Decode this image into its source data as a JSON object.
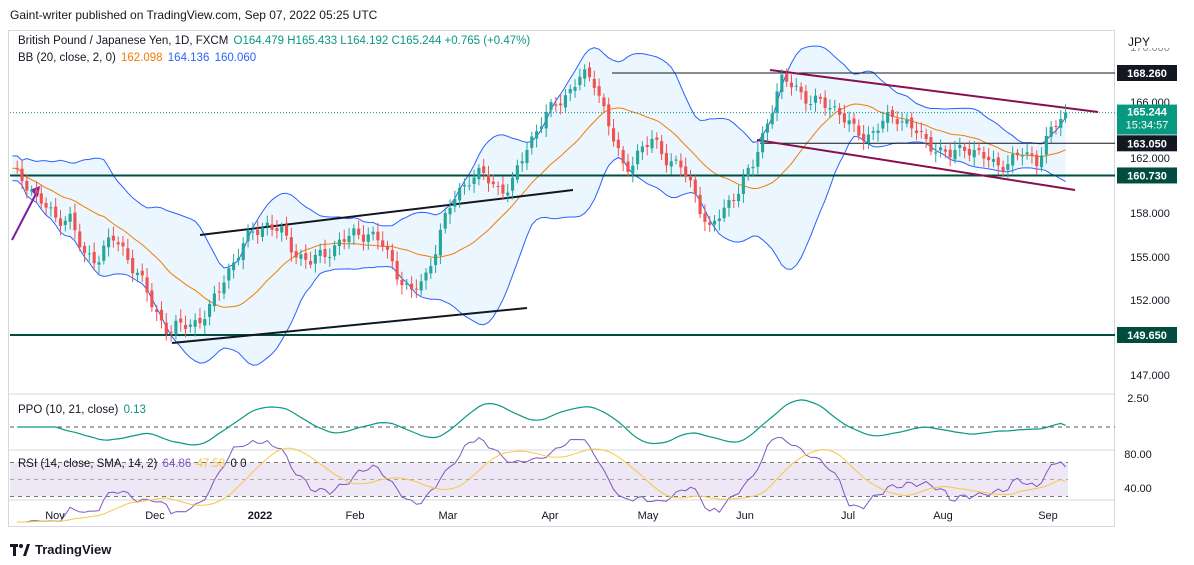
{
  "header": {
    "publisher": "Gaint-writer published on TradingView.com, Sep 07, 2022 05:25 UTC"
  },
  "legend": {
    "symbol": "British Pound / Japanese Yen, 1D, FXCM",
    "ohlc": "O164.479  H165.433  L164.192  C165.244  +0.765 (+0.47%)",
    "bb_label": "BB (20, close, 2, 0)",
    "bb_basis": "162.098",
    "bb_upper": "164.136",
    "bb_lower": "160.060",
    "ppo_label": "PPO (10, 21, close)",
    "ppo_value": "0.13",
    "rsi_label": "RSI (14, close, SMA, 14, 2)",
    "rsi_value": "64.86",
    "rsi_sma": "47.58",
    "rsi_extra": "0  0"
  },
  "currency": "JPY",
  "footer": {
    "brand": "TradingView"
  },
  "colors": {
    "up": "#26a69a",
    "down": "#ef5350",
    "bb_fill": "#e3f2fd",
    "bb_band": "#2962ff",
    "basis": "#f57c00",
    "support": "#004d40",
    "channel": "#880e4f",
    "ppo": "#089981",
    "rsi": "#7e57c2",
    "rsi_sma": "#f7c744"
  },
  "chart_data": [
    {
      "type": "candlestick",
      "title": "British Pound / Japanese Yen, 1D, FXCM",
      "ylim": [
        146,
        170
      ],
      "ytick_labels": [
        "147.000",
        "149.650",
        "152.000",
        "155.000",
        "158.000",
        "160.730",
        "162.000",
        "163.050",
        "165.244",
        "166.000",
        "168.260"
      ],
      "x_tick_labels": [
        "Nov",
        "Dec",
        "2022",
        "Feb",
        "Mar",
        "Apr",
        "May",
        "Jun",
        "Jul",
        "Aug",
        "Sep"
      ],
      "close_path": [
        161,
        160.2,
        158.8,
        157.6,
        157.8,
        155.0,
        155.0,
        156.3,
        155.2,
        153.5,
        151.2,
        150.0,
        150.2,
        150.6,
        151.5,
        153.8,
        155.5,
        156.8,
        157.3,
        156.5,
        155.2,
        154.6,
        155.3,
        156.0,
        156.5,
        156.7,
        155.8,
        154.0,
        152.4,
        153.5,
        156.5,
        159.0,
        160.5,
        160.8,
        159.9,
        159.7,
        162.5,
        164.4,
        165.6,
        166.7,
        168.1,
        167.5,
        164.0,
        161.0,
        162.5,
        163.2,
        162.0,
        161.3,
        159.3,
        156.8,
        158.2,
        159.8,
        161.3,
        164.5,
        167.6,
        167.3,
        166.0,
        165.9,
        165.5,
        164.0,
        163.5,
        164.4,
        165.0,
        164.5,
        163.2,
        162.7,
        162.1,
        162.9,
        162.2,
        161.5,
        161.7,
        162.3,
        161.9,
        163.9,
        165.244
      ],
      "price_labels": [
        {
          "label": "168.260",
          "price": 168.26,
          "style": "level"
        },
        {
          "label": "165.244",
          "sub": "15:34:57",
          "price": 165.244,
          "style": "current"
        },
        {
          "label": "163.050",
          "price": 163.05,
          "style": "level"
        },
        {
          "label": "160.730",
          "price": 160.73,
          "style": "support"
        },
        {
          "label": "149.650",
          "price": 149.65,
          "style": "support"
        }
      ],
      "axis_plain_labels": [
        "166.000",
        "162.000",
        "158.000",
        "155.000",
        "152.000",
        "147.000"
      ]
    },
    {
      "type": "line",
      "title": "PPO (10, 21, close)",
      "ylim": [
        -2,
        3
      ],
      "ytick_labels": [
        "2.50"
      ],
      "last_value": 0.13
    },
    {
      "type": "line",
      "title": "RSI (14, close, SMA, 14, 2)",
      "ylim": [
        25,
        85
      ],
      "ytick_labels": [
        "80.00",
        "40.00"
      ],
      "bands": [
        70,
        30
      ],
      "last_value": 64.86,
      "sma_value": 47.58
    }
  ]
}
